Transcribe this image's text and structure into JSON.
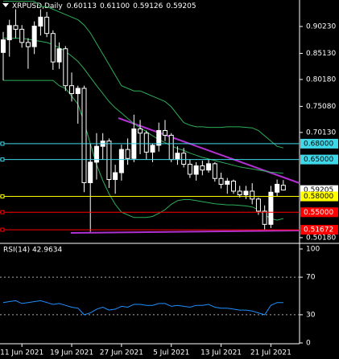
{
  "chart_data": {
    "type": "candlestick",
    "title": "XRPUSD,Daily",
    "last_bar": {
      "values": [
        0.60113,
        0.611,
        0.59126,
        0.59205
      ],
      "value_labels": [
        "0.60113",
        "0.61100",
        "0.59126",
        "0.59205"
      ]
    },
    "categories": [
      null,
      null,
      null,
      "11 Jun 2021",
      null,
      null,
      null,
      null,
      null,
      null,
      null,
      "19 Jun 2021",
      null,
      null,
      null,
      null,
      null,
      null,
      null,
      "27 Jun 2021",
      null,
      null,
      null,
      null,
      null,
      null,
      null,
      "5 Jul 2021",
      null,
      null,
      null,
      null,
      null,
      null,
      null,
      "13 Jul 2021",
      null,
      null,
      null,
      null,
      null,
      null,
      null,
      "21 Jul 2021",
      null,
      null
    ],
    "ohlc": {
      "up_color": "#ffffff",
      "down_color": "#000000",
      "wick_color": "#ffffff",
      "open": [
        0.853,
        0.877,
        0.904,
        0.897,
        0.872,
        0.864,
        0.903,
        0.92,
        0.889,
        0.835,
        0.86,
        0.79,
        0.775,
        0.785,
        0.606,
        0.645,
        0.675,
        0.685,
        0.612,
        0.625,
        0.669,
        0.652,
        0.708,
        0.7,
        0.664,
        0.677,
        0.705,
        0.696,
        0.65,
        0.662,
        0.641,
        0.622,
        0.638,
        0.63,
        0.642,
        0.614,
        0.603,
        0.609,
        0.59,
        0.583,
        0.59,
        0.575,
        0.552,
        0.527,
        0.588,
        0.60113
      ],
      "high": [
        0.892,
        0.915,
        0.935,
        0.905,
        0.88,
        0.912,
        0.935,
        0.93,
        0.895,
        0.872,
        0.865,
        0.815,
        0.79,
        0.79,
        0.68,
        0.7,
        0.7,
        0.69,
        0.64,
        0.678,
        0.69,
        0.735,
        0.725,
        0.705,
        0.68,
        0.72,
        0.725,
        0.7,
        0.675,
        0.672,
        0.65,
        0.645,
        0.648,
        0.65,
        0.645,
        0.625,
        0.615,
        0.612,
        0.6,
        0.6,
        0.605,
        0.578,
        0.563,
        0.6,
        0.612,
        0.611
      ],
      "low": [
        0.8,
        0.845,
        0.88,
        0.862,
        0.822,
        0.85,
        0.885,
        0.882,
        0.82,
        0.822,
        0.78,
        0.76,
        0.718,
        0.588,
        0.513,
        0.612,
        0.65,
        0.596,
        0.585,
        0.61,
        0.64,
        0.645,
        0.66,
        0.65,
        0.645,
        0.665,
        0.685,
        0.645,
        0.64,
        0.635,
        0.615,
        0.61,
        0.62,
        0.625,
        0.608,
        0.595,
        0.585,
        0.585,
        0.578,
        0.575,
        0.565,
        0.545,
        0.517,
        0.52,
        0.58,
        0.59126
      ],
      "close": [
        0.877,
        0.904,
        0.897,
        0.872,
        0.864,
        0.903,
        0.92,
        0.889,
        0.835,
        0.86,
        0.79,
        0.775,
        0.785,
        0.606,
        0.645,
        0.675,
        0.685,
        0.612,
        0.625,
        0.669,
        0.652,
        0.708,
        0.7,
        0.664,
        0.677,
        0.705,
        0.696,
        0.65,
        0.662,
        0.641,
        0.622,
        0.638,
        0.63,
        0.642,
        0.614,
        0.603,
        0.609,
        0.59,
        0.583,
        0.59,
        0.575,
        0.552,
        0.527,
        0.588,
        0.603,
        0.59205
      ]
    },
    "bands": {
      "color": "#2fae5a",
      "upper": [
        0.95,
        0.95,
        0.95,
        0.95,
        0.95,
        0.95,
        0.94,
        0.94,
        0.935,
        0.93,
        0.925,
        0.92,
        0.915,
        0.905,
        0.89,
        0.87,
        0.85,
        0.83,
        0.81,
        0.79,
        0.785,
        0.78,
        0.78,
        0.775,
        0.77,
        0.765,
        0.76,
        0.75,
        0.735,
        0.72,
        0.715,
        0.712,
        0.712,
        0.711,
        0.711,
        0.711,
        0.712,
        0.712,
        0.712,
        0.711,
        0.71,
        0.705,
        0.695,
        0.685,
        0.675,
        0.672
      ],
      "middle": [
        0.88,
        0.88,
        0.88,
        0.88,
        0.878,
        0.876,
        0.874,
        0.872,
        0.868,
        0.862,
        0.855,
        0.846,
        0.836,
        0.822,
        0.806,
        0.79,
        0.775,
        0.76,
        0.748,
        0.738,
        0.728,
        0.718,
        0.71,
        0.703,
        0.695,
        0.688,
        0.682,
        0.676,
        0.671,
        0.667,
        0.662,
        0.658,
        0.654,
        0.651,
        0.648,
        0.645,
        0.642,
        0.639,
        0.636,
        0.634,
        0.632,
        0.63,
        0.628,
        0.626,
        0.625,
        0.624
      ],
      "lower": [
        0.8,
        0.8,
        0.8,
        0.8,
        0.8,
        0.8,
        0.8,
        0.8,
        0.8,
        0.79,
        0.785,
        0.77,
        0.755,
        0.72,
        0.68,
        0.64,
        0.61,
        0.585,
        0.565,
        0.55,
        0.545,
        0.54,
        0.54,
        0.54,
        0.542,
        0.548,
        0.555,
        0.565,
        0.572,
        0.574,
        0.574,
        0.572,
        0.57,
        0.568,
        0.566,
        0.565,
        0.564,
        0.564,
        0.563,
        0.562,
        0.56,
        0.555,
        0.545,
        0.538,
        0.535,
        0.538
      ]
    },
    "ylim": [
      0.4925,
      0.9525
    ],
    "yticks": [
      {
        "value": 0.9023,
        "label": "0.90230"
      },
      {
        "value": 0.8513,
        "label": "0.85130"
      },
      {
        "value": 0.8018,
        "label": "0.80180"
      },
      {
        "value": 0.7508,
        "label": "0.75080"
      },
      {
        "value": 0.7013,
        "label": "0.70130"
      },
      {
        "value": 0.5018,
        "label": "0.50180"
      }
    ],
    "levels": [
      {
        "value": 0.68,
        "label": "0.68000",
        "color": "#3fd8e8",
        "text_color": "#000000"
      },
      {
        "value": 0.65,
        "label": "0.65000",
        "color": "#3fd8e8",
        "text_color": "#000000"
      },
      {
        "value": 0.58,
        "label": "0.58000",
        "color": "#ffff00",
        "text_color": "#000000"
      },
      {
        "value": 0.55,
        "label": "0.55000",
        "color": "#ff0000",
        "text_color": "#ffffff"
      },
      {
        "value": 0.51672,
        "label": "0.51672",
        "color": "#ff0000",
        "text_color": "#ffffff"
      }
    ],
    "price_label": {
      "value": 0.59205,
      "label": "0.59205"
    },
    "rsi": {
      "title": "RSI(14) 42.9634",
      "color": "#1e90ff",
      "ylim": [
        0,
        100
      ],
      "yticks": [
        100,
        70,
        30,
        0
      ],
      "levels": [
        70,
        30
      ],
      "values": [
        43,
        44,
        45,
        42,
        43,
        44,
        45,
        43,
        41,
        42,
        40,
        38,
        37,
        30,
        32,
        36,
        38,
        35,
        36,
        39,
        38,
        41,
        41,
        40,
        40,
        42,
        42,
        39,
        40,
        39,
        38,
        40,
        40,
        41,
        38,
        37,
        37,
        36,
        35,
        35,
        34,
        32,
        30,
        40,
        43,
        42.9634
      ]
    }
  }
}
